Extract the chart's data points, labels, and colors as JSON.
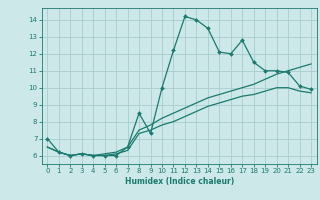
{
  "xlabel": "Humidex (Indice chaleur)",
  "bg_color": "#cce8e8",
  "line_color": "#1a7a6e",
  "grid_color": "#aacccc",
  "spine_color": "#1a7a6e",
  "xlim": [
    -0.5,
    23.5
  ],
  "ylim": [
    5.5,
    14.7
  ],
  "xticks": [
    0,
    1,
    2,
    3,
    4,
    5,
    6,
    7,
    8,
    9,
    10,
    11,
    12,
    13,
    14,
    15,
    16,
    17,
    18,
    19,
    20,
    21,
    22,
    23
  ],
  "yticks": [
    6,
    7,
    8,
    9,
    10,
    11,
    12,
    13,
    14
  ],
  "line1_x": [
    0,
    1,
    2,
    3,
    4,
    5,
    6,
    7,
    8,
    9,
    10,
    11,
    12,
    13,
    14,
    15,
    16,
    17,
    18,
    19,
    20,
    21,
    22,
    23
  ],
  "line1_y": [
    7.0,
    6.2,
    6.0,
    6.1,
    6.0,
    6.0,
    6.0,
    6.5,
    8.5,
    7.3,
    10.0,
    12.2,
    14.2,
    14.0,
    13.5,
    12.1,
    12.0,
    12.8,
    11.5,
    11.0,
    11.0,
    10.9,
    10.1,
    9.9
  ],
  "line2_x": [
    0,
    1,
    2,
    3,
    4,
    5,
    6,
    7,
    8,
    9,
    10,
    11,
    12,
    13,
    14,
    15,
    16,
    17,
    18,
    19,
    20,
    21,
    22,
    23
  ],
  "line2_y": [
    6.5,
    6.2,
    6.0,
    6.1,
    6.0,
    6.1,
    6.2,
    6.5,
    7.5,
    7.8,
    8.2,
    8.5,
    8.8,
    9.1,
    9.4,
    9.6,
    9.8,
    10.0,
    10.2,
    10.5,
    10.8,
    11.0,
    11.2,
    11.4
  ],
  "line3_x": [
    0,
    1,
    2,
    3,
    4,
    5,
    6,
    7,
    8,
    9,
    10,
    11,
    12,
    13,
    14,
    15,
    16,
    17,
    18,
    19,
    20,
    21,
    22,
    23
  ],
  "line3_y": [
    6.5,
    6.2,
    6.0,
    6.1,
    6.0,
    6.0,
    6.1,
    6.3,
    7.3,
    7.5,
    7.8,
    8.0,
    8.3,
    8.6,
    8.9,
    9.1,
    9.3,
    9.5,
    9.6,
    9.8,
    10.0,
    10.0,
    9.8,
    9.7
  ],
  "tick_fontsize": 5.0,
  "xlabel_fontsize": 5.5
}
